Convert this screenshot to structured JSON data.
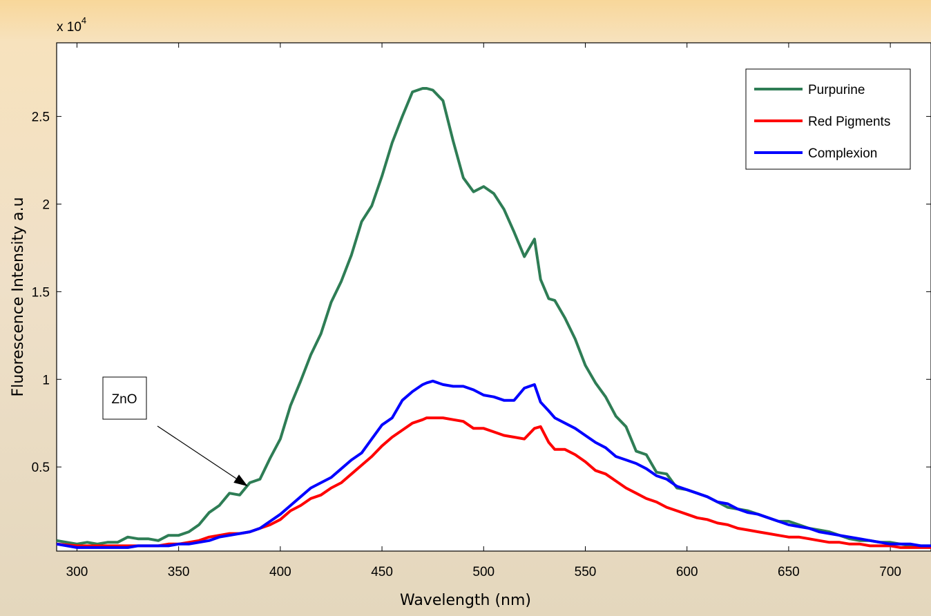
{
  "chart_data": {
    "type": "line",
    "title": "",
    "xlabel": "Wavelength (nm)",
    "ylabel": "Fluorescence Intensity a.u",
    "y_scale_label": "x 10",
    "y_scale_exponent": "4",
    "xlim": [
      290,
      720
    ],
    "ylim": [
      0.02,
      2.92
    ],
    "x_ticks": [
      300,
      350,
      400,
      450,
      500,
      550,
      600,
      650,
      700
    ],
    "x_tick_labels": [
      "300",
      "350",
      "400",
      "450",
      "500",
      "550",
      "600",
      "650",
      "700"
    ],
    "y_ticks": [
      0.5,
      1,
      1.5,
      2,
      2.5
    ],
    "y_tick_labels": [
      "0.5",
      "1",
      "1.5",
      "2",
      "2.5"
    ],
    "grid": false,
    "legend_position": "top-right",
    "annotation": {
      "text": "ZnO",
      "arrow_to": [
        384,
        0.39
      ]
    },
    "x": [
      290,
      300,
      305,
      310,
      315,
      320,
      325,
      330,
      335,
      340,
      345,
      350,
      355,
      360,
      365,
      370,
      375,
      380,
      385,
      390,
      395,
      400,
      405,
      410,
      415,
      420,
      425,
      430,
      435,
      440,
      445,
      450,
      455,
      460,
      465,
      470,
      472,
      475,
      480,
      485,
      490,
      495,
      500,
      505,
      510,
      515,
      520,
      525,
      528,
      532,
      535,
      540,
      545,
      550,
      555,
      560,
      565,
      570,
      575,
      580,
      585,
      590,
      595,
      600,
      605,
      610,
      615,
      620,
      625,
      630,
      635,
      640,
      645,
      650,
      655,
      660,
      665,
      670,
      675,
      680,
      685,
      690,
      695,
      700,
      705,
      710,
      715,
      720
    ],
    "series": [
      {
        "name": "Purpurine",
        "color": "#2e7d55",
        "values": [
          0.08,
          0.06,
          0.07,
          0.06,
          0.07,
          0.07,
          0.1,
          0.09,
          0.09,
          0.08,
          0.11,
          0.11,
          0.13,
          0.17,
          0.24,
          0.28,
          0.35,
          0.34,
          0.41,
          0.43,
          0.55,
          0.66,
          0.85,
          0.99,
          1.14,
          1.26,
          1.44,
          1.56,
          1.71,
          1.9,
          1.99,
          2.16,
          2.35,
          2.5,
          2.64,
          2.66,
          2.66,
          2.65,
          2.59,
          2.36,
          2.15,
          2.07,
          2.1,
          2.06,
          1.97,
          1.84,
          1.7,
          1.8,
          1.57,
          1.46,
          1.45,
          1.35,
          1.23,
          1.08,
          0.98,
          0.9,
          0.79,
          0.73,
          0.59,
          0.57,
          0.47,
          0.46,
          0.38,
          0.37,
          0.35,
          0.33,
          0.3,
          0.27,
          0.26,
          0.25,
          0.23,
          0.21,
          0.19,
          0.19,
          0.17,
          0.15,
          0.14,
          0.13,
          0.11,
          0.09,
          0.08,
          0.08,
          0.07,
          0.07,
          0.06,
          0.05,
          0.05,
          0.05
        ]
      },
      {
        "name": "Red Pigments",
        "color": "#ff0000",
        "values": [
          0.06,
          0.05,
          0.05,
          0.05,
          0.05,
          0.05,
          0.05,
          0.05,
          0.05,
          0.05,
          0.06,
          0.06,
          0.07,
          0.08,
          0.1,
          0.11,
          0.12,
          0.12,
          0.13,
          0.15,
          0.17,
          0.2,
          0.25,
          0.28,
          0.32,
          0.34,
          0.38,
          0.41,
          0.46,
          0.51,
          0.56,
          0.62,
          0.67,
          0.71,
          0.75,
          0.77,
          0.78,
          0.78,
          0.78,
          0.77,
          0.76,
          0.72,
          0.72,
          0.7,
          0.68,
          0.67,
          0.66,
          0.72,
          0.73,
          0.64,
          0.6,
          0.6,
          0.57,
          0.53,
          0.48,
          0.46,
          0.42,
          0.38,
          0.35,
          0.32,
          0.3,
          0.27,
          0.25,
          0.23,
          0.21,
          0.2,
          0.18,
          0.17,
          0.15,
          0.14,
          0.13,
          0.12,
          0.11,
          0.1,
          0.1,
          0.09,
          0.08,
          0.07,
          0.07,
          0.06,
          0.06,
          0.05,
          0.05,
          0.05,
          0.04,
          0.04,
          0.04,
          0.04
        ]
      },
      {
        "name": "Complexion",
        "color": "#0000ff",
        "values": [
          0.06,
          0.04,
          0.04,
          0.04,
          0.04,
          0.04,
          0.04,
          0.05,
          0.05,
          0.05,
          0.05,
          0.06,
          0.06,
          0.07,
          0.08,
          0.1,
          0.11,
          0.12,
          0.13,
          0.15,
          0.19,
          0.23,
          0.28,
          0.33,
          0.38,
          0.41,
          0.44,
          0.49,
          0.54,
          0.58,
          0.66,
          0.74,
          0.78,
          0.88,
          0.93,
          0.97,
          0.98,
          0.99,
          0.97,
          0.96,
          0.96,
          0.94,
          0.91,
          0.9,
          0.88,
          0.88,
          0.95,
          0.97,
          0.87,
          0.82,
          0.78,
          0.75,
          0.72,
          0.68,
          0.64,
          0.61,
          0.56,
          0.54,
          0.52,
          0.49,
          0.45,
          0.43,
          0.39,
          0.37,
          0.35,
          0.33,
          0.3,
          0.29,
          0.26,
          0.24,
          0.23,
          0.21,
          0.19,
          0.17,
          0.16,
          0.15,
          0.13,
          0.12,
          0.11,
          0.1,
          0.09,
          0.08,
          0.07,
          0.06,
          0.06,
          0.06,
          0.05,
          0.05
        ]
      }
    ]
  }
}
